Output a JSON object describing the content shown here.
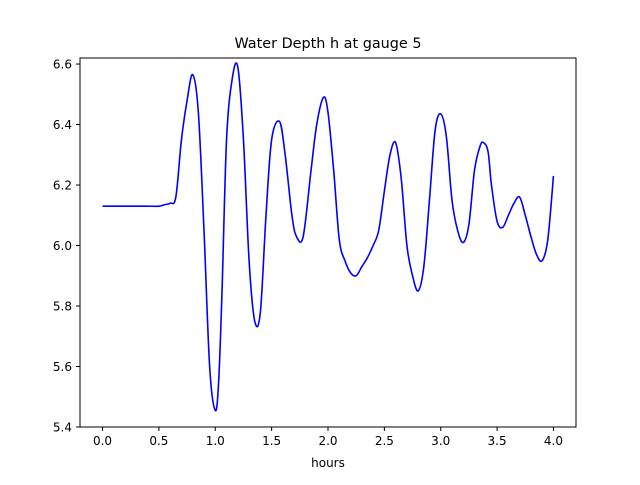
{
  "chart_data": {
    "type": "line",
    "title": "Water Depth h at gauge 5",
    "xlabel": "hours",
    "ylabel": "",
    "xlim": [
      -0.2,
      4.2
    ],
    "ylim": [
      5.4,
      6.62
    ],
    "xticks": [
      0.0,
      0.5,
      1.0,
      1.5,
      2.0,
      2.5,
      3.0,
      3.5,
      4.0
    ],
    "xtick_labels": [
      "0.0",
      "0.5",
      "1.0",
      "1.5",
      "2.0",
      "2.5",
      "3.0",
      "3.5",
      "4.0"
    ],
    "yticks": [
      5.4,
      5.6,
      5.8,
      6.0,
      6.2,
      6.4,
      6.6
    ],
    "ytick_labels": [
      "5.4",
      "5.6",
      "5.8",
      "6.0",
      "6.2",
      "6.4",
      "6.6"
    ],
    "grid": false,
    "legend": "none",
    "series": [
      {
        "color": "#0000ff",
        "x": [
          0.0,
          0.1,
          0.2,
          0.3,
          0.4,
          0.5,
          0.55,
          0.6,
          0.65,
          0.7,
          0.75,
          0.8,
          0.85,
          0.9,
          0.95,
          1.0,
          1.03,
          1.06,
          1.1,
          1.15,
          1.2,
          1.25,
          1.3,
          1.35,
          1.4,
          1.45,
          1.5,
          1.57,
          1.62,
          1.68,
          1.72,
          1.78,
          1.85,
          1.9,
          1.96,
          2.0,
          2.05,
          2.1,
          2.15,
          2.2,
          2.25,
          2.3,
          2.35,
          2.4,
          2.45,
          2.5,
          2.55,
          2.6,
          2.65,
          2.7,
          2.75,
          2.8,
          2.85,
          2.9,
          2.95,
          3.0,
          3.05,
          3.1,
          3.15,
          3.2,
          3.25,
          3.3,
          3.35,
          3.38,
          3.42,
          3.45,
          3.5,
          3.55,
          3.6,
          3.65,
          3.7,
          3.75,
          3.8,
          3.85,
          3.9,
          3.95,
          4.0
        ],
        "y": [
          6.13,
          6.13,
          6.13,
          6.13,
          6.13,
          6.13,
          6.135,
          6.14,
          6.16,
          6.35,
          6.48,
          6.565,
          6.44,
          6.05,
          5.6,
          5.455,
          5.55,
          5.85,
          6.35,
          6.55,
          6.59,
          6.35,
          5.95,
          5.75,
          5.78,
          6.1,
          6.35,
          6.41,
          6.3,
          6.1,
          6.03,
          6.03,
          6.25,
          6.4,
          6.49,
          6.44,
          6.25,
          6.02,
          5.95,
          5.91,
          5.9,
          5.93,
          5.96,
          6.0,
          6.05,
          6.18,
          6.3,
          6.34,
          6.22,
          6.0,
          5.9,
          5.85,
          5.93,
          6.15,
          6.38,
          6.435,
          6.36,
          6.15,
          6.05,
          6.01,
          6.07,
          6.25,
          6.33,
          6.34,
          6.31,
          6.2,
          6.08,
          6.06,
          6.1,
          6.14,
          6.16,
          6.1,
          6.03,
          5.97,
          5.95,
          6.02,
          6.23
        ]
      }
    ]
  }
}
